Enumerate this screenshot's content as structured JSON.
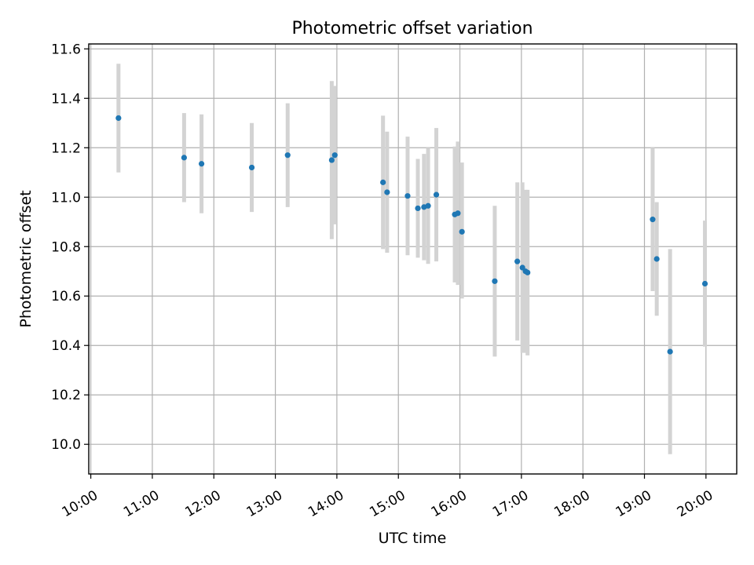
{
  "chart_data": {
    "type": "scatter",
    "title": "Photometric offset variation",
    "xlabel": "UTC time",
    "ylabel": "Photometric offset",
    "xlim": [
      "09:58",
      "20:30"
    ],
    "ylim": [
      9.88,
      11.62
    ],
    "x_ticks": [
      "10:00",
      "11:00",
      "12:00",
      "13:00",
      "14:00",
      "15:00",
      "16:00",
      "17:00",
      "18:00",
      "19:00",
      "20:00"
    ],
    "y_ticks": [
      10.0,
      10.2,
      10.4,
      10.6,
      10.8,
      11.0,
      11.2,
      11.4,
      11.6
    ],
    "grid": true,
    "point_color": "#1f77b4",
    "errorbar_color": "#d3d3d3",
    "points": [
      {
        "x": "10:27",
        "y": 11.32,
        "low": 11.1,
        "high": 11.54
      },
      {
        "x": "11:31",
        "y": 11.16,
        "low": 10.98,
        "high": 11.34
      },
      {
        "x": "11:48",
        "y": 11.135,
        "low": 10.935,
        "high": 11.335
      },
      {
        "x": "12:37",
        "y": 11.12,
        "low": 10.94,
        "high": 11.3
      },
      {
        "x": "13:12",
        "y": 11.17,
        "low": 10.96,
        "high": 11.38
      },
      {
        "x": "13:55",
        "y": 11.15,
        "low": 10.83,
        "high": 11.47
      },
      {
        "x": "13:58",
        "y": 11.17,
        "low": 10.89,
        "high": 11.45
      },
      {
        "x": "14:45",
        "y": 11.06,
        "low": 10.79,
        "high": 11.33
      },
      {
        "x": "14:49",
        "y": 11.02,
        "low": 10.775,
        "high": 11.265
      },
      {
        "x": "15:09",
        "y": 11.005,
        "low": 10.765,
        "high": 11.245
      },
      {
        "x": "15:19",
        "y": 10.955,
        "low": 10.755,
        "high": 11.155
      },
      {
        "x": "15:25",
        "y": 10.96,
        "low": 10.745,
        "high": 11.175
      },
      {
        "x": "15:29",
        "y": 10.965,
        "low": 10.73,
        "high": 11.2
      },
      {
        "x": "15:37",
        "y": 11.01,
        "low": 10.74,
        "high": 11.28
      },
      {
        "x": "15:55",
        "y": 10.93,
        "low": 10.655,
        "high": 11.205
      },
      {
        "x": "15:58",
        "y": 10.935,
        "low": 10.645,
        "high": 11.225
      },
      {
        "x": "16:02",
        "y": 10.86,
        "low": 10.59,
        "high": 11.14
      },
      {
        "x": "16:34",
        "y": 10.66,
        "low": 10.355,
        "high": 10.965
      },
      {
        "x": "16:56",
        "y": 10.74,
        "low": 10.42,
        "high": 11.06
      },
      {
        "x": "17:01",
        "y": 10.715,
        "low": 10.37,
        "high": 11.06
      },
      {
        "x": "17:04",
        "y": 10.7,
        "low": 10.37,
        "high": 11.03
      },
      {
        "x": "17:06",
        "y": 10.695,
        "low": 10.36,
        "high": 11.03
      },
      {
        "x": "19:08",
        "y": 10.91,
        "low": 10.62,
        "high": 11.2
      },
      {
        "x": "19:12",
        "y": 10.75,
        "low": 10.52,
        "high": 10.98
      },
      {
        "x": "19:25",
        "y": 10.375,
        "low": 9.96,
        "high": 10.79
      },
      {
        "x": "19:59",
        "y": 10.65,
        "low": 10.395,
        "high": 10.905
      }
    ]
  }
}
